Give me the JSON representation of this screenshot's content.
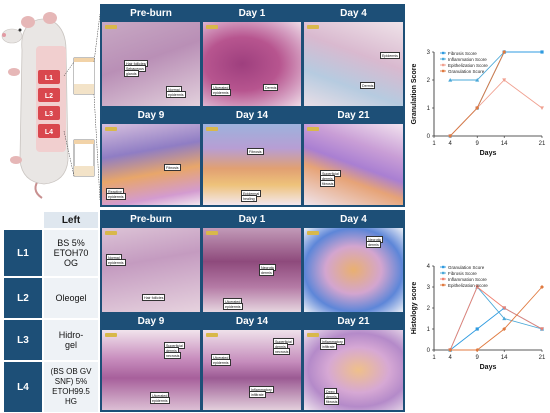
{
  "mouse": {
    "locations": [
      "L1",
      "L2",
      "L3",
      "L4"
    ]
  },
  "table": {
    "header": "Left",
    "rows": [
      {
        "loc": "L1",
        "treatment": [
          "BS 5%",
          "ETOH70",
          "OG"
        ]
      },
      {
        "loc": "L2",
        "treatment": [
          "Oleogel"
        ]
      },
      {
        "loc": "L3",
        "treatment": [
          "Hidro-",
          "gel"
        ]
      },
      {
        "loc": "L4",
        "treatment": [
          "(BS OB GV",
          "SNF) 5%",
          "ETOH99.5",
          "HG"
        ]
      }
    ]
  },
  "grid_top": {
    "days": [
      "Pre-burn",
      "Day 1",
      "Day 4",
      "Day 9",
      "Day 14",
      "Day 21"
    ],
    "annotations": [
      [
        "Hair follicles/",
        "Sebaceous",
        "glands",
        "Normal",
        "epidermis"
      ],
      [
        "Ulcerated",
        "epidermis",
        "Dermis"
      ],
      [
        "Epidermis",
        "Dermis"
      ],
      [
        "Reactive",
        "epidermis",
        "Fibrosis"
      ],
      [
        "Fibrosis",
        "Epidermal",
        "healing"
      ],
      [
        "Superficial",
        "dermis",
        "fibrosis"
      ]
    ]
  },
  "grid_bottom": {
    "days": [
      "Pre-burn",
      "Day 1",
      "Day 4",
      "Day 9",
      "Day 14",
      "Day 21"
    ],
    "annotations": [
      [
        "Normal",
        "epidermis",
        "Hair follicles"
      ],
      [
        "Necrotic",
        "dermis",
        "Ulcerated",
        "epidermis"
      ],
      [
        "Necrotic",
        "dermis"
      ],
      [
        "Superficial",
        "dermis",
        "necrosis",
        "Ulcerated",
        "epidermis"
      ],
      [
        "Ulcerated",
        "epidermis",
        "Superficial",
        "dermis",
        "necrosis",
        "Inflammatory",
        "infiltrate"
      ],
      [
        "Inflammatory",
        "infiltrate",
        "Deep",
        "dermis",
        "fibrosis"
      ]
    ]
  },
  "chart_data": [
    {
      "type": "line",
      "ylabel": "Granulation Score",
      "xlabel": "Days",
      "x": [
        1,
        4,
        9,
        14,
        21
      ],
      "xticks": [
        "1",
        "4",
        "9",
        "14",
        "21"
      ],
      "ylim": [
        0,
        3
      ],
      "yticks": [
        "0",
        "1",
        "2",
        "3"
      ],
      "series": [
        {
          "name": "Fibrosis Score",
          "color": "#2f9be0",
          "marker": "square",
          "x": [
            4,
            9,
            14,
            21
          ],
          "values": [
            0,
            1,
            3,
            3
          ]
        },
        {
          "name": "Inflammation Score",
          "color": "#4aa8d8",
          "marker": "triangle",
          "x": [
            4,
            9,
            14
          ],
          "values": [
            2,
            2,
            3
          ]
        },
        {
          "name": "Epithelization Score",
          "color": "#f0a090",
          "marker": "triangle-down",
          "x": [
            4,
            9,
            14,
            21
          ],
          "values": [
            0,
            1,
            2,
            1
          ]
        },
        {
          "name": "Granulation Score",
          "color": "#e07a40",
          "marker": "diamond",
          "x": [
            4,
            9,
            14
          ],
          "values": [
            0,
            1,
            3
          ]
        }
      ],
      "legend": "top-left"
    },
    {
      "type": "line",
      "ylabel": "Histology score",
      "xlabel": "Days",
      "x": [
        1,
        4,
        9,
        14,
        21
      ],
      "xticks": [
        "1",
        "4",
        "9",
        "14",
        "21"
      ],
      "ylim": [
        0,
        4
      ],
      "yticks": [
        "0",
        "1",
        "2",
        "3",
        "4"
      ],
      "series": [
        {
          "name": "Granulation Score",
          "color": "#2f9be0",
          "marker": "square",
          "x": [
            4,
            9,
            14,
            21
          ],
          "values": [
            0,
            1,
            2,
            1
          ]
        },
        {
          "name": "Fibrosis Score",
          "color": "#4aa8d8",
          "marker": "triangle",
          "x": [
            4,
            9,
            14,
            21
          ],
          "values": [
            0,
            3,
            1.5,
            1
          ]
        },
        {
          "name": "Inflammation Score",
          "color": "#f08070",
          "marker": "triangle-down",
          "x": [
            4,
            9,
            14,
            21
          ],
          "values": [
            0,
            3,
            2,
            1
          ]
        },
        {
          "name": "Epithelization Score",
          "color": "#e07a40",
          "marker": "diamond",
          "x": [
            4,
            9,
            14,
            21
          ],
          "values": [
            0,
            0,
            1,
            3
          ]
        }
      ],
      "legend": "top-left"
    }
  ]
}
